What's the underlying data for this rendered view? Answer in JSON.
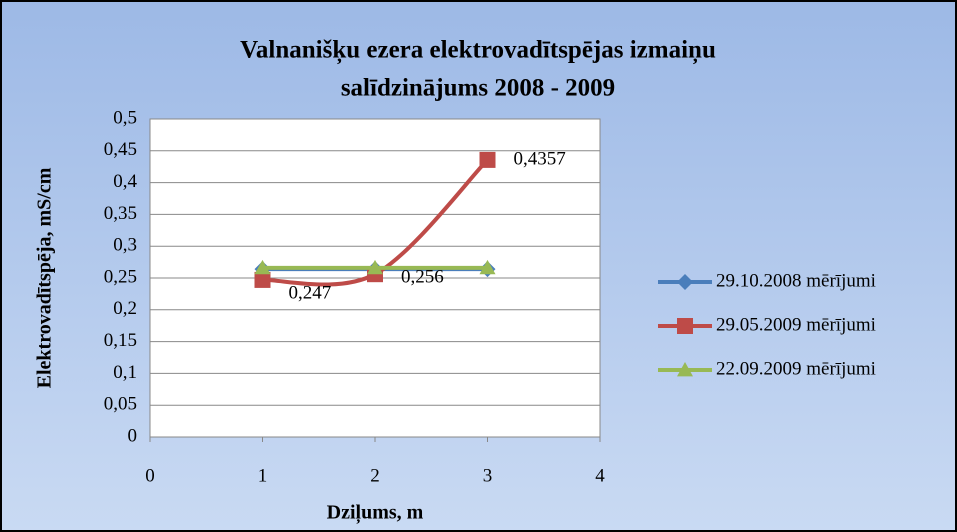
{
  "chart_data": {
    "type": "line",
    "smooth": true,
    "title": [
      "Valnanišķu ezera elektrovadītspējas izmaiņu",
      "salīdzinājums 2008 - 2009"
    ],
    "x_label": "Dziļums, m",
    "y_label": "Elektrovadītspēja, mS/cm",
    "x": [
      1,
      2,
      3
    ],
    "series": [
      {
        "name": "29.10.2008 mērījumi",
        "color": "#4a7ebb",
        "marker": "diamond",
        "values": [
          0.264,
          0.264,
          0.264
        ]
      },
      {
        "name": "29.05.2009 mērījumi",
        "color": "#be4b48",
        "marker": "square",
        "values": [
          0.247,
          0.256,
          0.4357
        ],
        "value_labels": [
          "0,247",
          "0,256",
          "0,4357"
        ]
      },
      {
        "name": "22.09.2009 mērījumi",
        "color": "#98b954",
        "marker": "triangle",
        "values": [
          0.266,
          0.266,
          0.266
        ]
      }
    ],
    "xlim": [
      0,
      4
    ],
    "xticks": [
      0,
      1,
      2,
      3,
      4
    ],
    "ylim": [
      0,
      0.5
    ],
    "yticks": [
      0,
      {
        "value": 0.05,
        "label": "0,05"
      },
      {
        "value": 0.1,
        "label": "0,1"
      },
      {
        "value": 0.15,
        "label": "0,15"
      },
      {
        "value": 0.2,
        "label": "0,2"
      },
      {
        "value": 0.25,
        "label": "0,25"
      },
      {
        "value": 0.3,
        "label": "0,3"
      },
      {
        "value": 0.35,
        "label": "0,35"
      },
      {
        "value": 0.4,
        "label": "0,4"
      },
      {
        "value": 0.45,
        "label": "0,45"
      },
      {
        "value": 0.5,
        "label": "0,5"
      }
    ],
    "grid": true,
    "legend": "right"
  }
}
